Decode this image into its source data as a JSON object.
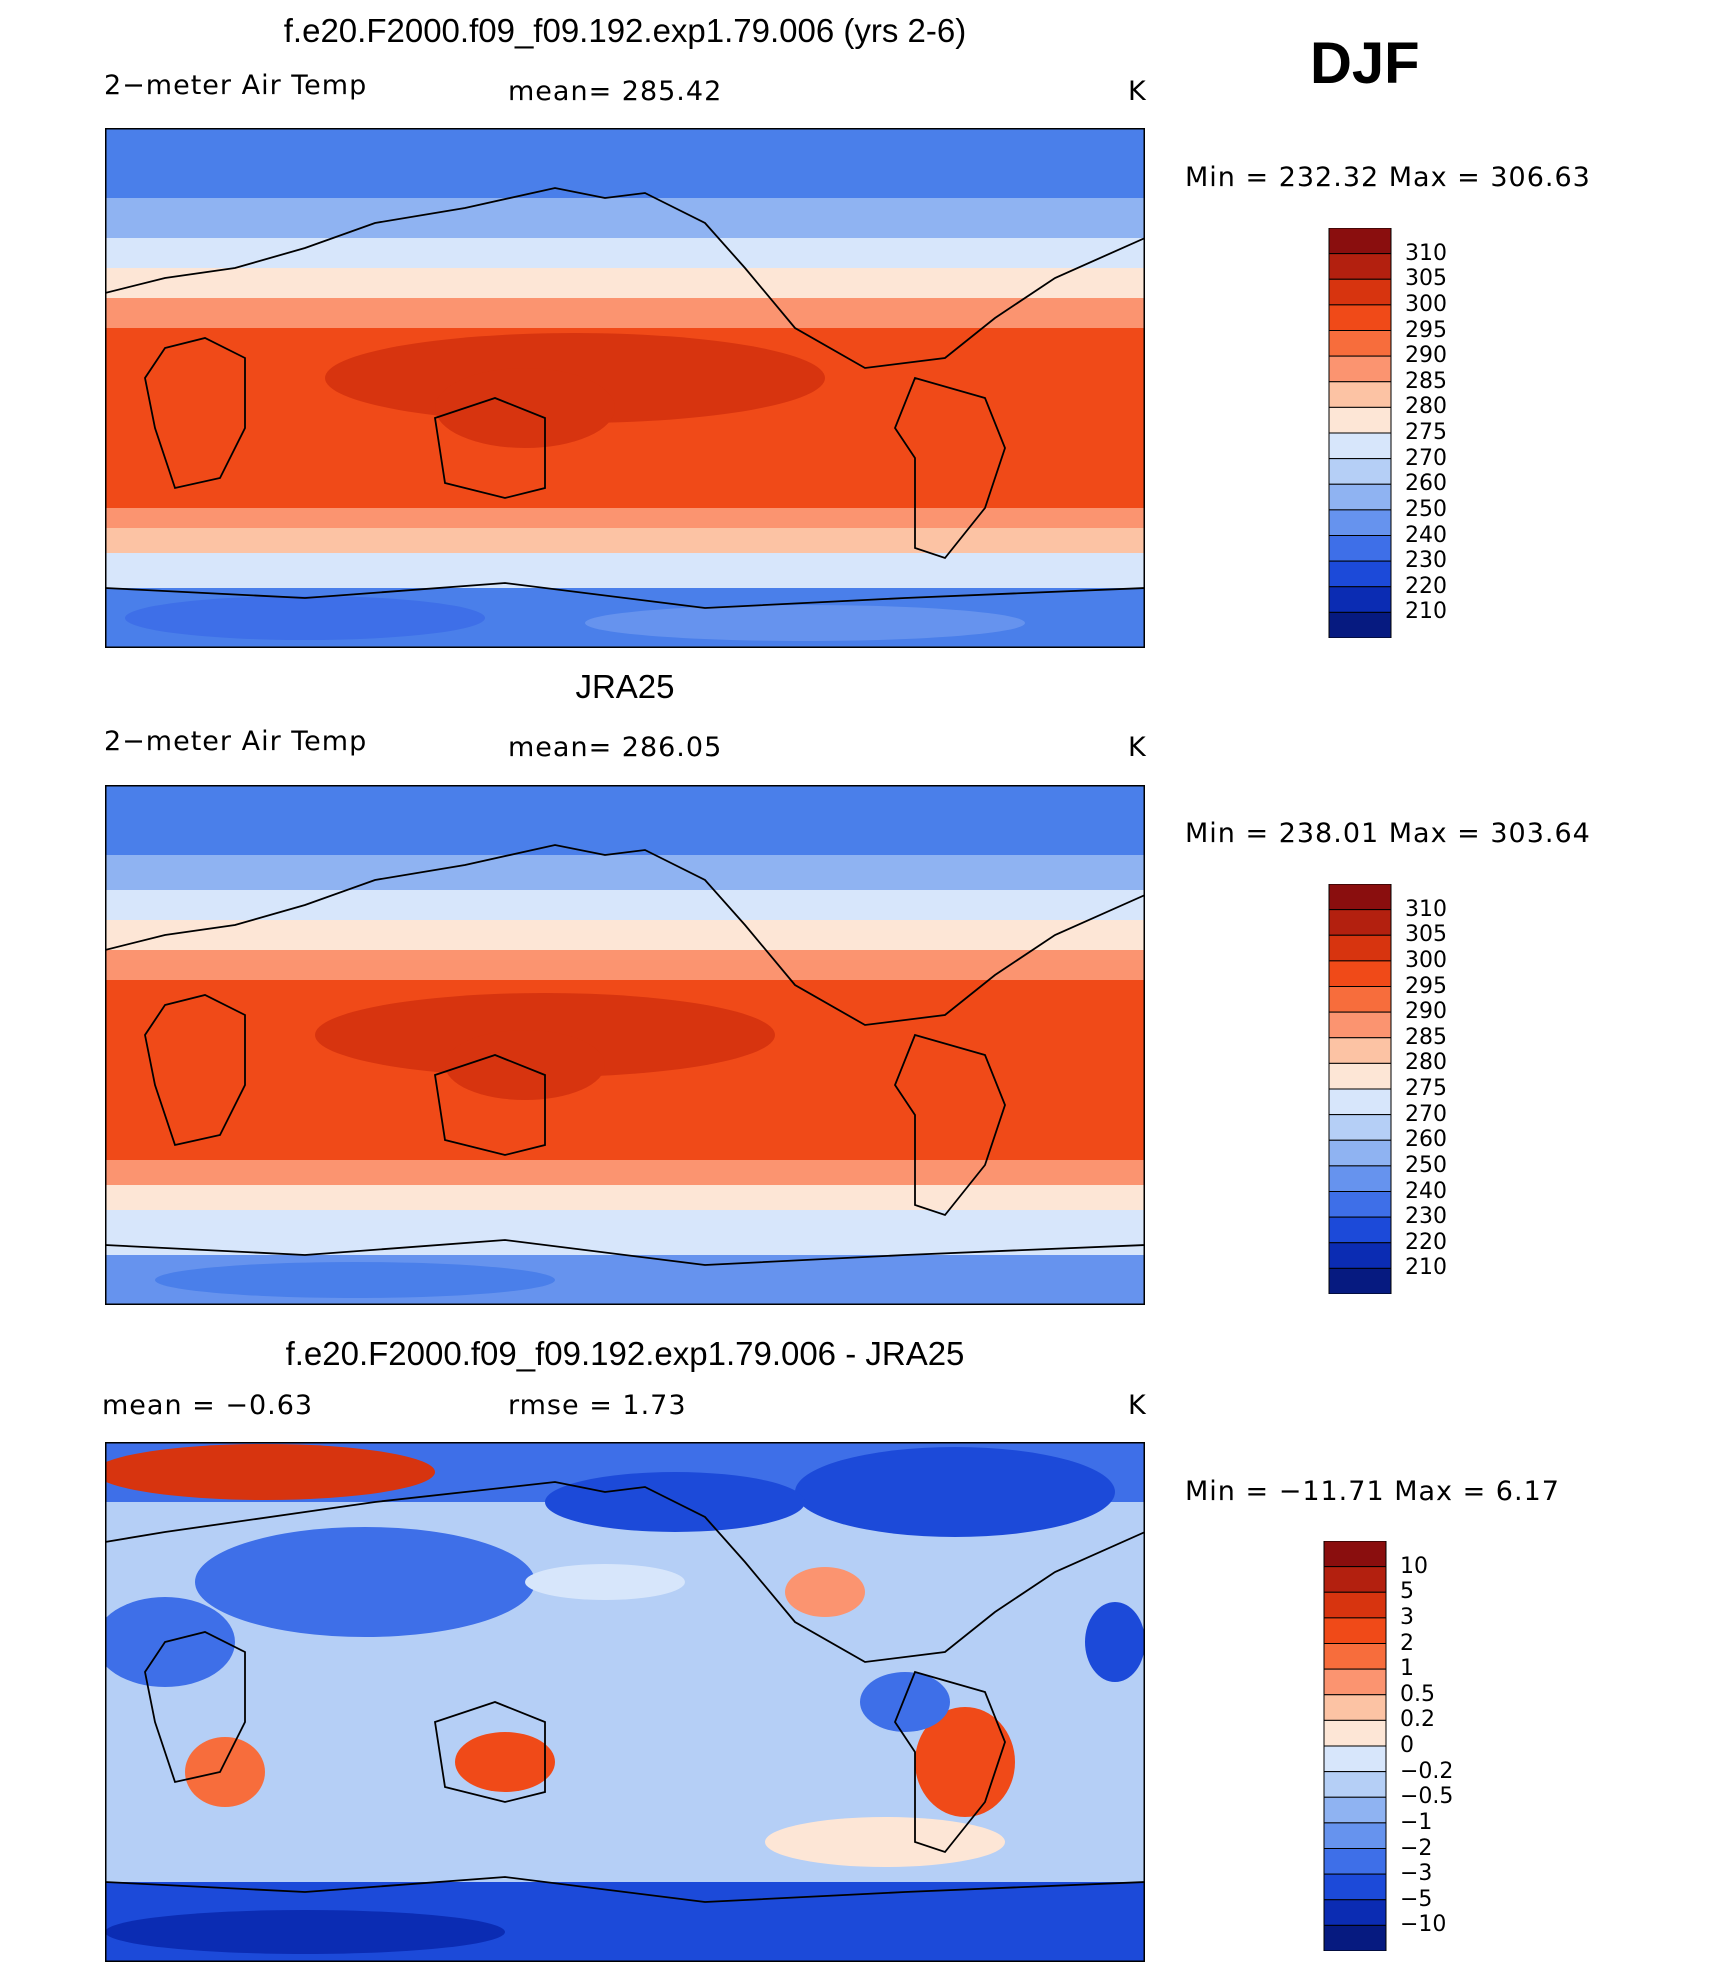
{
  "season": "DJF",
  "panels": [
    {
      "title": "f.e20.F2000.f09_f09.192.exp1.79.006 (yrs 2-6)",
      "variable": "2−meter Air Temp",
      "stat1": "mean=  285.42",
      "stat2": "",
      "units": "K",
      "minmax": "Min  =  232.32  Max  =  306.63",
      "kind": "field"
    },
    {
      "title": "JRA25",
      "variable": "2−meter Air Temp",
      "stat1": "mean=  286.05",
      "stat2": "",
      "units": "K",
      "minmax": "Min  =  238.01  Max  =  303.64",
      "kind": "field"
    },
    {
      "title": "f.e20.F2000.f09_f09.192.exp1.79.006 - JRA25",
      "variable": "mean  =    −0.63",
      "stat1": "rmse  =     1.73",
      "stat2": "",
      "units": "K",
      "minmax": "Min  =  −11.71  Max  =       6.17",
      "kind": "diff"
    }
  ],
  "colorbar_temp": {
    "labels": [
      "310",
      "305",
      "300",
      "295",
      "290",
      "285",
      "280",
      "275",
      "270",
      "260",
      "250",
      "240",
      "230",
      "220",
      "210"
    ],
    "colors": [
      "#8a0e0e",
      "#b3200f",
      "#d7340f",
      "#f04a18",
      "#f76d3c",
      "#fb9470",
      "#fcc3a4",
      "#fde6d6",
      "#d7e6fb",
      "#b5cff6",
      "#8fb3f2",
      "#6693ee",
      "#3e6fe8",
      "#1c4ad9",
      "#0b2cb3",
      "#061a80"
    ]
  },
  "colorbar_diff": {
    "labels": [
      "10",
      "5",
      "3",
      "2",
      "1",
      "0.5",
      "0.2",
      "0",
      "−0.2",
      "−0.5",
      "−1",
      "−2",
      "−3",
      "−5",
      "−10"
    ],
    "colors": [
      "#8a0e0e",
      "#b3200f",
      "#d7340f",
      "#f04a18",
      "#f76d3c",
      "#fb9470",
      "#fcc3a4",
      "#fde6d6",
      "#d7e6fb",
      "#b5cff6",
      "#8fb3f2",
      "#6693ee",
      "#3e6fe8",
      "#1c4ad9",
      "#0b2cb3",
      "#061a80"
    ]
  }
}
